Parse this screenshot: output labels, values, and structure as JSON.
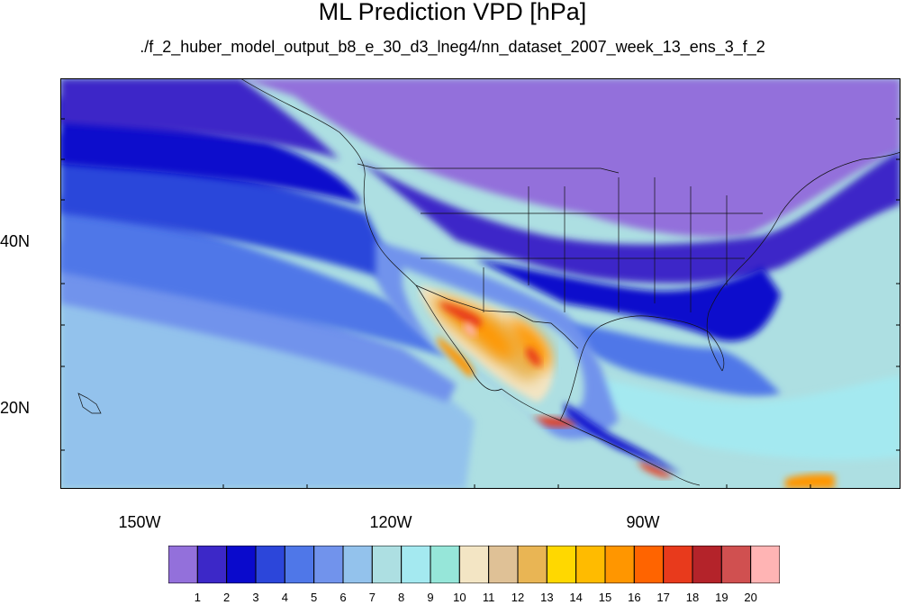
{
  "title": "ML Prediction VPD [hPa]",
  "subtitle": "./f_2_huber_model_output_b8_e_30_d3_lneg4/nn_dataset_2007_week_13_ens_3_f_2",
  "lat_labels": [
    "40N",
    "20N"
  ],
  "lon_labels": [
    "150W",
    "120W",
    "90W"
  ],
  "colorbar": {
    "labels": [
      "1",
      "2",
      "3",
      "4",
      "5",
      "6",
      "7",
      "8",
      "9",
      "10",
      "11",
      "12",
      "13",
      "14",
      "15",
      "16",
      "17",
      "18",
      "19",
      "20"
    ],
    "colors": [
      "#9370DB",
      "#3C28C8",
      "#0A0ACC",
      "#2C46DA",
      "#4F77E8",
      "#7193EC",
      "#93C2EC",
      "#ADDFE2",
      "#A4E9F0",
      "#96E6D9",
      "#F3E5C4",
      "#DFC196",
      "#E9B554",
      "#FFD800",
      "#FFBB00",
      "#FF9600",
      "#FF6400",
      "#E83A1C",
      "#B4232A",
      "#D05050",
      "#FFB4B4"
    ]
  }
}
